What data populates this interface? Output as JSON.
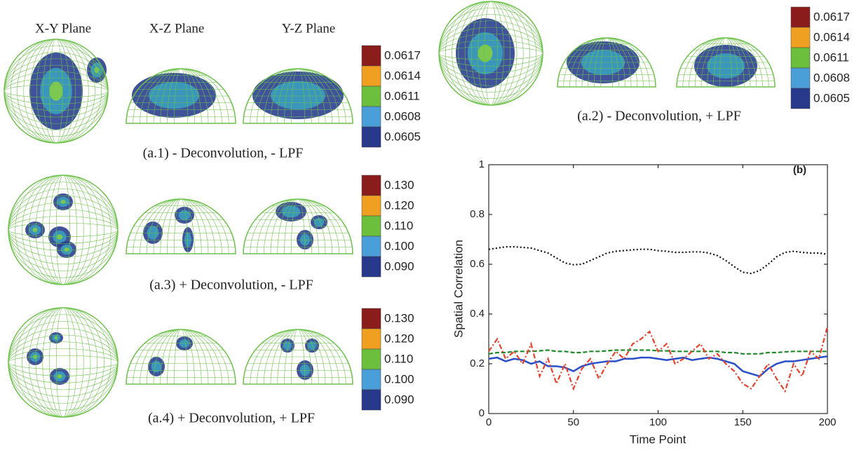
{
  "headers": [
    "X-Y Plane",
    "X-Z Plane",
    "Y-Z Plane"
  ],
  "panels": [
    {
      "caption": "(a.1)  - Deconvolution, - LPF",
      "colorbar": [
        "0.0617",
        "0.0614",
        "0.0611",
        "0.0608",
        "0.0605"
      ]
    },
    {
      "caption": "(a.2)  - Deconvolution, + LPF",
      "colorbar": [
        "0.0617",
        "0.0614",
        "0.0611",
        "0.0608",
        "0.0605"
      ]
    },
    {
      "caption": "(a.3)  + Deconvolution, - LPF",
      "colorbar": [
        "0.130",
        "0.120",
        "0.110",
        "0.100",
        "0.090"
      ]
    },
    {
      "caption": "(a.4)  + Deconvolution, + LPF",
      "colorbar": [
        "0.130",
        "0.120",
        "0.110",
        "0.100",
        "0.090"
      ]
    }
  ],
  "chart_data": {
    "type": "line",
    "annotation": "(b)",
    "xlabel": "Time Point",
    "ylabel": "Spatial Correlation",
    "x": [
      0,
      5,
      10,
      15,
      20,
      25,
      30,
      35,
      40,
      45,
      50,
      55,
      60,
      65,
      70,
      75,
      80,
      85,
      90,
      95,
      100,
      105,
      110,
      115,
      120,
      125,
      130,
      135,
      140,
      145,
      150,
      155,
      160,
      165,
      170,
      175,
      180,
      185,
      190,
      195,
      200
    ],
    "series": [
      {
        "color": "#111111",
        "style": "dotted",
        "values": [
          0.66,
          0.665,
          0.67,
          0.67,
          0.668,
          0.665,
          0.655,
          0.645,
          0.625,
          0.605,
          0.598,
          0.6,
          0.615,
          0.63,
          0.645,
          0.652,
          0.655,
          0.658,
          0.66,
          0.66,
          0.655,
          0.652,
          0.648,
          0.648,
          0.65,
          0.65,
          0.645,
          0.635,
          0.615,
          0.59,
          0.568,
          0.563,
          0.575,
          0.6,
          0.63,
          0.648,
          0.652,
          0.648,
          0.645,
          0.645,
          0.64
        ]
      },
      {
        "color": "#1f8a2a",
        "style": "dashed",
        "values": [
          0.24,
          0.245,
          0.245,
          0.25,
          0.25,
          0.25,
          0.252,
          0.255,
          0.25,
          0.25,
          0.245,
          0.245,
          0.25,
          0.25,
          0.252,
          0.255,
          0.255,
          0.255,
          0.255,
          0.255,
          0.252,
          0.252,
          0.25,
          0.25,
          0.25,
          0.25,
          0.25,
          0.25,
          0.245,
          0.245,
          0.24,
          0.24,
          0.24,
          0.245,
          0.245,
          0.248,
          0.25,
          0.25,
          0.25,
          0.25,
          0.25
        ]
      },
      {
        "color": "#2a4fc8",
        "style": "solid",
        "values": [
          0.22,
          0.225,
          0.21,
          0.22,
          0.215,
          0.2,
          0.21,
          0.19,
          0.19,
          0.185,
          0.17,
          0.19,
          0.2,
          0.205,
          0.21,
          0.21,
          0.22,
          0.22,
          0.225,
          0.225,
          0.22,
          0.215,
          0.22,
          0.225,
          0.215,
          0.22,
          0.225,
          0.22,
          0.21,
          0.2,
          0.17,
          0.16,
          0.15,
          0.18,
          0.2,
          0.21,
          0.21,
          0.215,
          0.22,
          0.225,
          0.23
        ]
      },
      {
        "color": "#e8402a",
        "style": "dashdot",
        "values": [
          0.25,
          0.3,
          0.22,
          0.25,
          0.2,
          0.28,
          0.15,
          0.22,
          0.12,
          0.2,
          0.1,
          0.18,
          0.22,
          0.14,
          0.2,
          0.25,
          0.22,
          0.28,
          0.3,
          0.33,
          0.25,
          0.28,
          0.2,
          0.22,
          0.25,
          0.28,
          0.22,
          0.24,
          0.2,
          0.17,
          0.12,
          0.1,
          0.15,
          0.2,
          0.14,
          0.09,
          0.2,
          0.15,
          0.25,
          0.22,
          0.35
        ]
      }
    ],
    "xlim": [
      0,
      200
    ],
    "xticks": [
      0,
      50,
      100,
      150,
      200
    ],
    "ylim": [
      0,
      1
    ],
    "yticks": [
      0,
      0.2,
      0.4,
      0.6,
      0.8,
      1
    ]
  }
}
